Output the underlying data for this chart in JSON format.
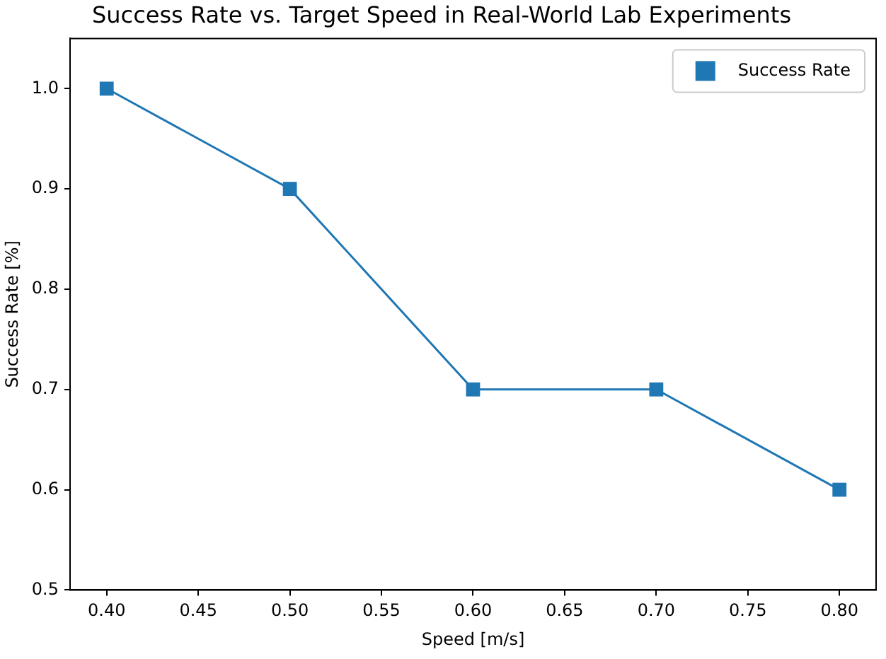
{
  "chart_data": {
    "type": "line",
    "title": "Success Rate vs. Target Speed in Real-World Lab Experiments",
    "xlabel": "Speed [m/s]",
    "ylabel": "Success Rate [%]",
    "x": [
      0.4,
      0.5,
      0.6,
      0.7,
      0.8
    ],
    "series": [
      {
        "name": "Success Rate",
        "color": "#1f77b4",
        "values": [
          1.0,
          0.9,
          0.7,
          0.7,
          0.6
        ]
      }
    ],
    "xlim": [
      0.38,
      0.82
    ],
    "ylim": [
      0.5,
      1.05
    ],
    "xticks": [
      {
        "value": 0.4,
        "label": "0.40"
      },
      {
        "value": 0.45,
        "label": "0.45"
      },
      {
        "value": 0.5,
        "label": "0.50"
      },
      {
        "value": 0.55,
        "label": "0.55"
      },
      {
        "value": 0.6,
        "label": "0.60"
      },
      {
        "value": 0.65,
        "label": "0.65"
      },
      {
        "value": 0.7,
        "label": "0.70"
      },
      {
        "value": 0.75,
        "label": "0.75"
      },
      {
        "value": 0.8,
        "label": "0.80"
      }
    ],
    "yticks": [
      {
        "value": 0.5,
        "label": "0.5"
      },
      {
        "value": 0.6,
        "label": "0.6"
      },
      {
        "value": 0.7,
        "label": "0.7"
      },
      {
        "value": 0.8,
        "label": "0.8"
      },
      {
        "value": 0.9,
        "label": "0.9"
      },
      {
        "value": 1.0,
        "label": "1.0"
      }
    ],
    "grid": false,
    "legend": "top right",
    "marker": "square",
    "line_style": "solid"
  }
}
